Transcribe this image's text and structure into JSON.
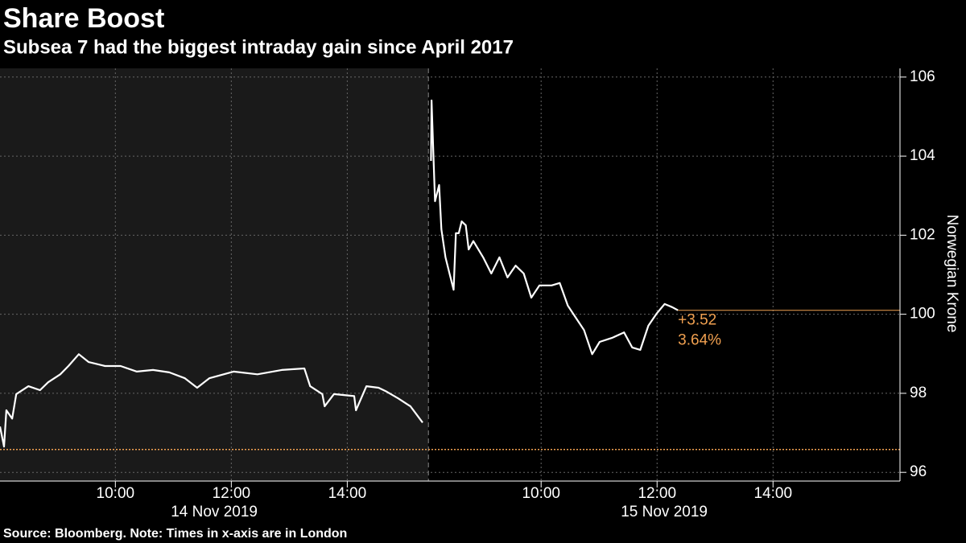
{
  "chart_data": {
    "type": "line",
    "title": "Share Boost",
    "subtitle": "Subsea 7 had the biggest intraday gain since April 2017",
    "source": "Source: Bloomberg. Note: Times in x-axis are in London",
    "y_label": "Norwegian Krone",
    "ylim": [
      95.78,
      106.22
    ],
    "yticks": [
      96,
      98,
      100,
      102,
      104,
      106
    ],
    "grid": true,
    "previous_close": 96.58,
    "last_value": 100.1,
    "change_label": "+3.52",
    "change_pct_label": "3.64%",
    "accent_color": "#f0a050",
    "panels": [
      {
        "date": "14 Nov 2019",
        "background": "#1a1a1a",
        "color": "#ffffff",
        "xlim": [
          8.01,
          15.4
        ],
        "xticks": [
          {
            "value": 10,
            "label": "10:00"
          },
          {
            "value": 12,
            "label": "12:00"
          },
          {
            "value": 14,
            "label": "14:00"
          }
        ],
        "x": [
          8.01,
          8.08,
          8.12,
          8.22,
          8.29,
          8.5,
          8.7,
          8.84,
          9.05,
          9.19,
          9.37,
          9.54,
          9.82,
          10.09,
          10.37,
          10.65,
          10.93,
          11.2,
          11.41,
          11.62,
          12.04,
          12.45,
          12.87,
          13.26,
          13.36,
          13.57,
          13.61,
          13.77,
          14.12,
          14.15,
          14.33,
          14.54,
          14.68,
          14.88,
          15.09,
          15.3
        ],
        "values": [
          97.16,
          96.65,
          97.57,
          97.36,
          97.98,
          98.18,
          98.08,
          98.28,
          98.48,
          98.69,
          98.99,
          98.79,
          98.69,
          98.69,
          98.55,
          98.59,
          98.53,
          98.38,
          98.14,
          98.38,
          98.55,
          98.48,
          98.59,
          98.63,
          98.18,
          97.98,
          97.67,
          97.98,
          97.93,
          97.57,
          98.18,
          98.14,
          98.04,
          97.87,
          97.67,
          97.26
        ]
      },
      {
        "date": "15 Nov 2019",
        "background": "#000000",
        "color": "#ffffff",
        "xlim": [
          8.056,
          16.19
        ],
        "xticks": [
          {
            "value": 10,
            "label": "10:00"
          },
          {
            "value": 12,
            "label": "12:00"
          },
          {
            "value": 14,
            "label": "14:00"
          }
        ],
        "x": [
          8.1,
          8.11,
          8.14,
          8.17,
          8.24,
          8.28,
          8.35,
          8.42,
          8.49,
          8.53,
          8.58,
          8.63,
          8.7,
          8.75,
          8.83,
          9.0,
          9.14,
          9.28,
          9.42,
          9.56,
          9.7,
          9.83,
          9.97,
          10.18,
          10.32,
          10.46,
          10.6,
          10.74,
          10.88,
          11.01,
          11.22,
          11.43,
          11.57,
          11.71,
          11.85,
          11.99,
          12.13,
          12.26,
          12.36
        ],
        "values": [
          103.88,
          105.41,
          104.09,
          102.86,
          103.27,
          102.15,
          101.44,
          101.03,
          100.62,
          102.05,
          102.05,
          102.35,
          102.25,
          101.64,
          101.85,
          101.44,
          101.03,
          101.44,
          100.93,
          101.23,
          101.03,
          100.42,
          100.73,
          100.73,
          100.79,
          100.22,
          99.91,
          99.6,
          98.99,
          99.3,
          99.4,
          99.54,
          99.16,
          99.1,
          99.71,
          100.01,
          100.26,
          100.18,
          100.1
        ]
      }
    ]
  }
}
